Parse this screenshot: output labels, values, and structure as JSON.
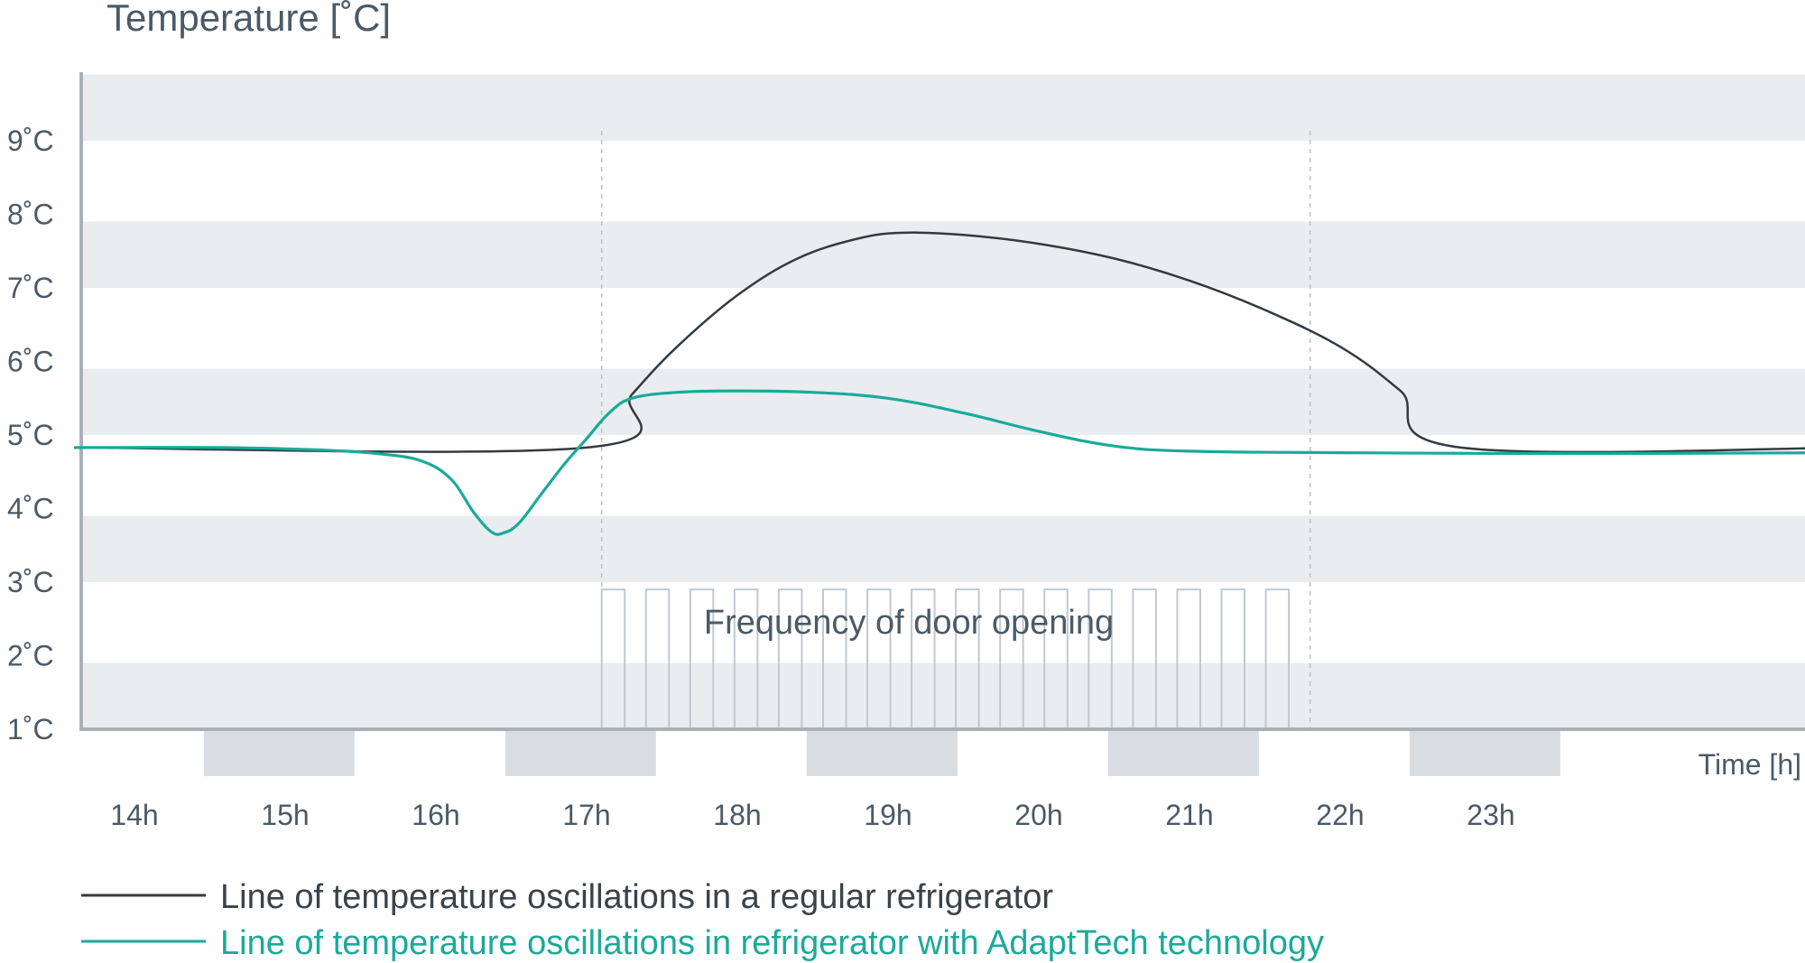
{
  "chart_data": {
    "type": "line",
    "title": "Temperature [˚C]",
    "ylabel": "",
    "xlabel": "Time [h]",
    "ylim": [
      1,
      9.9
    ],
    "xlim": [
      13.6,
      25.4
    ],
    "yticks": [
      {
        "value": 1,
        "label": "1˚C"
      },
      {
        "value": 2,
        "label": "2˚C"
      },
      {
        "value": 3,
        "label": "3˚C"
      },
      {
        "value": 4,
        "label": "4˚C"
      },
      {
        "value": 5,
        "label": "5˚C"
      },
      {
        "value": 6,
        "label": "6˚C"
      },
      {
        "value": 7,
        "label": "7˚C"
      },
      {
        "value": 8,
        "label": "8˚C"
      },
      {
        "value": 9,
        "label": "9˚C"
      }
    ],
    "xticks": [
      {
        "value": 14,
        "label": "14h"
      },
      {
        "value": 15,
        "label": "15h"
      },
      {
        "value": 16,
        "label": "16h"
      },
      {
        "value": 17,
        "label": "17h"
      },
      {
        "value": 18,
        "label": "18h"
      },
      {
        "value": 19,
        "label": "19h"
      },
      {
        "value": 20,
        "label": "20h"
      },
      {
        "value": 21,
        "label": "21h"
      },
      {
        "value": 22,
        "label": "22h"
      },
      {
        "value": 23,
        "label": "23h"
      }
    ],
    "bands": [
      [
        1,
        1.9
      ],
      [
        3,
        3.9
      ],
      [
        5,
        5.9
      ],
      [
        7,
        7.9
      ],
      [
        9,
        9.9
      ]
    ],
    "hour_blocks": [
      [
        14.46,
        15.46
      ],
      [
        16.46,
        17.46
      ],
      [
        18.46,
        19.46
      ],
      [
        20.46,
        21.46
      ],
      [
        22.46,
        23.46
      ]
    ],
    "door_period": {
      "label": "Frequency of door opening",
      "start": 17.1,
      "end": 21.8,
      "openings": 16,
      "height": 2.0
    },
    "series": [
      {
        "name": "Line of temperature oscillations in a regular refrigerator",
        "color": "#333a40",
        "points": [
          [
            13.6,
            4.83
          ],
          [
            17.0,
            4.83
          ],
          [
            17.3,
            5.55
          ],
          [
            17.6,
            6.2
          ],
          [
            18.0,
            6.9
          ],
          [
            18.4,
            7.4
          ],
          [
            18.8,
            7.67
          ],
          [
            19.1,
            7.75
          ],
          [
            19.5,
            7.72
          ],
          [
            20.0,
            7.6
          ],
          [
            20.5,
            7.4
          ],
          [
            21.0,
            7.1
          ],
          [
            21.5,
            6.7
          ],
          [
            22.0,
            6.2
          ],
          [
            22.4,
            5.6
          ],
          [
            22.8,
            4.83
          ],
          [
            25.4,
            4.83
          ]
        ]
      },
      {
        "name": "Line of temperature oscillations in refrigerator with AdaptTech technology",
        "color": "#1aaa9a",
        "points": [
          [
            13.6,
            4.83
          ],
          [
            14.6,
            4.83
          ],
          [
            15.2,
            4.8
          ],
          [
            15.6,
            4.75
          ],
          [
            15.9,
            4.65
          ],
          [
            16.1,
            4.4
          ],
          [
            16.25,
            3.95
          ],
          [
            16.37,
            3.68
          ],
          [
            16.45,
            3.67
          ],
          [
            16.55,
            3.8
          ],
          [
            16.7,
            4.2
          ],
          [
            16.85,
            4.6
          ],
          [
            17.0,
            4.95
          ],
          [
            17.15,
            5.3
          ],
          [
            17.3,
            5.5
          ],
          [
            17.6,
            5.58
          ],
          [
            18.0,
            5.6
          ],
          [
            18.5,
            5.58
          ],
          [
            19.0,
            5.5
          ],
          [
            19.5,
            5.3
          ],
          [
            20.0,
            5.05
          ],
          [
            20.5,
            4.85
          ],
          [
            21.0,
            4.78
          ],
          [
            22.0,
            4.76
          ],
          [
            23.0,
            4.75
          ],
          [
            24.0,
            4.75
          ],
          [
            25.4,
            4.76
          ]
        ]
      }
    ]
  }
}
